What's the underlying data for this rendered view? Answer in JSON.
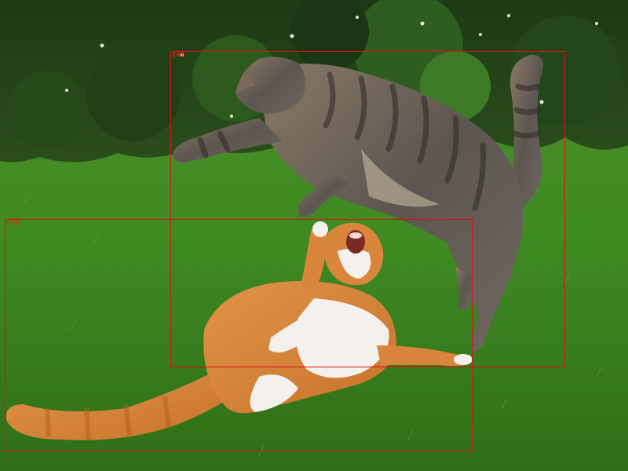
{
  "detections": [
    {
      "label": "cat"
    },
    {
      "label": "cat"
    }
  ],
  "colors": {
    "box": "#e01010",
    "label": "#ff1a1a"
  }
}
